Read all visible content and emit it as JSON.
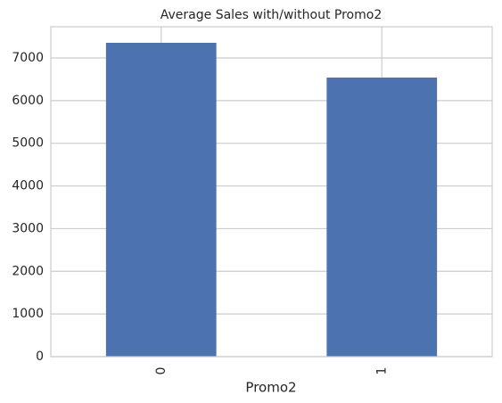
{
  "chart_data": {
    "type": "bar",
    "title": "Average Sales with/without Promo2",
    "x_label": "Promo2",
    "categories": [
      "0",
      "1"
    ],
    "values": [
      7355,
      6540
    ],
    "color": "#4c72b0",
    "ylim": [
      0,
      7731
    ],
    "yticks": [
      0,
      1000,
      2000,
      3000,
      4000,
      5000,
      6000,
      7000
    ],
    "grid": true
  }
}
